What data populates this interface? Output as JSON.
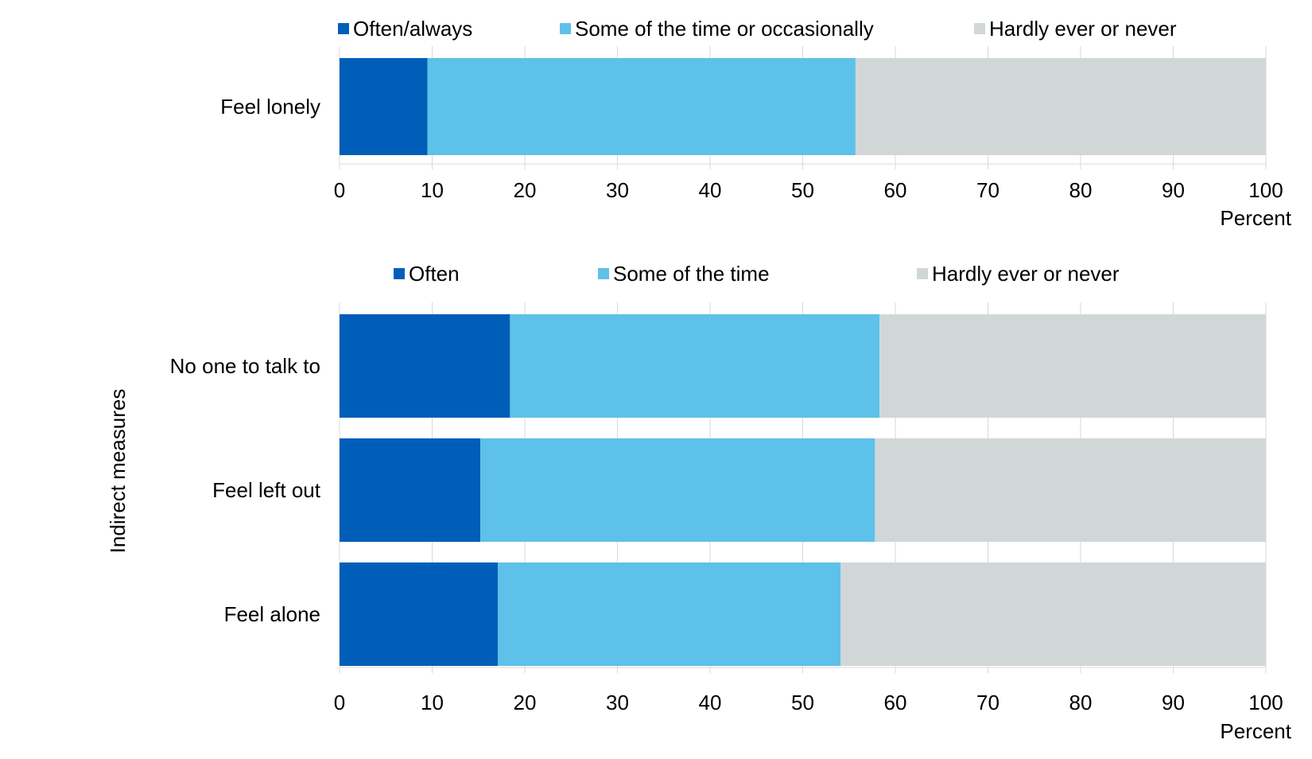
{
  "chart_data": [
    {
      "type": "bar",
      "orientation": "horizontal",
      "stacked": true,
      "title": "",
      "xlabel": "Percent",
      "ylabel": "",
      "xlim": [
        0,
        100
      ],
      "xticks": [
        "0",
        "10",
        "20",
        "30",
        "40",
        "50",
        "60",
        "70",
        "80",
        "90",
        "100"
      ],
      "grid": true,
      "legend_position": "top",
      "categories": [
        "Feel lonely"
      ],
      "series": [
        {
          "name": "Often/always",
          "values": [
            9.5
          ],
          "color": "#005EB8"
        },
        {
          "name": "Some of the time or occasionally",
          "values": [
            46.2
          ],
          "color": "#5EC1E9"
        },
        {
          "name": "Hardly ever or never",
          "values": [
            44.3
          ],
          "color": "#D1D7D7"
        }
      ]
    },
    {
      "type": "bar",
      "orientation": "horizontal",
      "stacked": true,
      "title": "",
      "xlabel": "Percent",
      "ylabel": "Indirect measures",
      "xlim": [
        0,
        100
      ],
      "xticks": [
        "0",
        "10",
        "20",
        "30",
        "40",
        "50",
        "60",
        "70",
        "80",
        "90",
        "100"
      ],
      "grid": true,
      "legend_position": "top",
      "categories": [
        "No one to talk to",
        "Feel left out",
        "Feel alone"
      ],
      "series": [
        {
          "name": "Often",
          "values": [
            18.4,
            15.2,
            17.1
          ],
          "color": "#005EB8"
        },
        {
          "name": "Some of the time",
          "values": [
            39.9,
            42.6,
            37.0
          ],
          "color": "#5EC1E9"
        },
        {
          "name": "Hardly ever or never",
          "values": [
            41.7,
            42.2,
            45.9
          ],
          "color": "#D1D7D7"
        }
      ]
    }
  ]
}
